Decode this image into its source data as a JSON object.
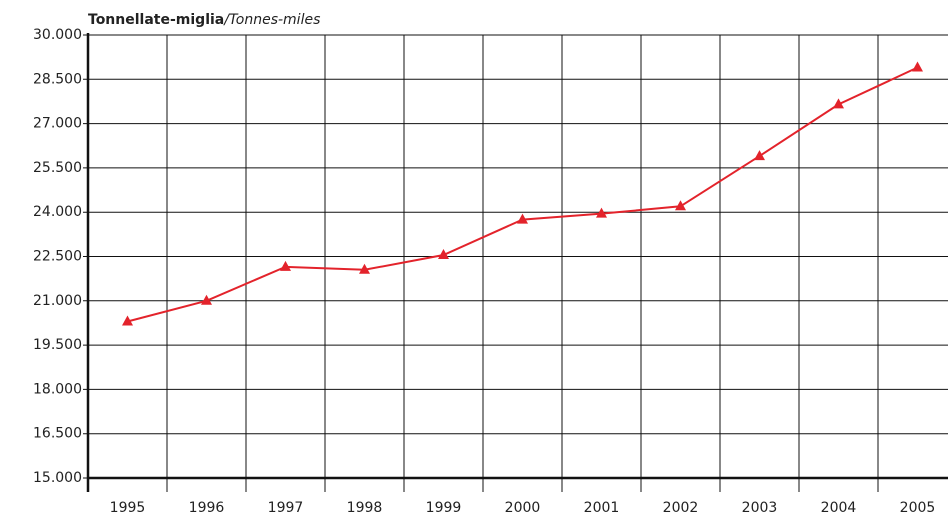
{
  "chart_data": {
    "type": "line",
    "title": "Tonnellate-miglia",
    "subtitle": "/Tonnes-miles",
    "categories": [
      "1995",
      "1996",
      "1997",
      "1998",
      "1999",
      "2000",
      "2001",
      "2002",
      "2003",
      "2004",
      "2005"
    ],
    "series": [
      {
        "name": "Tonnellate-miglia",
        "color": "#e3232b",
        "values": [
          20300,
          21000,
          22150,
          22050,
          22550,
          23750,
          23950,
          24200,
          25900,
          27650,
          28900
        ]
      }
    ],
    "ylim": [
      15000,
      30000
    ],
    "yticks": [
      {
        "value": 15000,
        "label": "15.000"
      },
      {
        "value": 16500,
        "label": "16.500"
      },
      {
        "value": 18000,
        "label": "18.000"
      },
      {
        "value": 19500,
        "label": "19.500"
      },
      {
        "value": 21000,
        "label": "21.000"
      },
      {
        "value": 22500,
        "label": "22.500"
      },
      {
        "value": 24000,
        "label": "24.000"
      },
      {
        "value": 25500,
        "label": "25.500"
      },
      {
        "value": 27000,
        "label": "27.000"
      },
      {
        "value": 28500,
        "label": "28.500"
      },
      {
        "value": 30000,
        "label": "30.000"
      }
    ],
    "grid": true
  }
}
